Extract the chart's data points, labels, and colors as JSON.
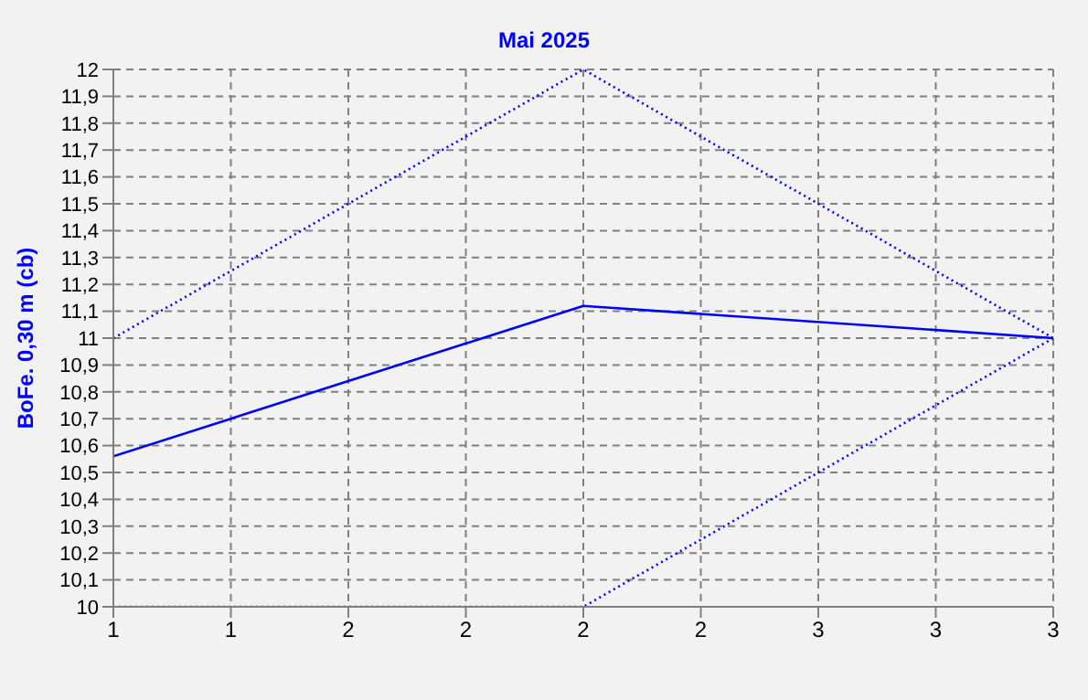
{
  "chart_data": {
    "type": "line",
    "title": "Mai 2025",
    "ylabel": "BoFe. 0,30 m (cb)",
    "x": [
      1,
      2,
      3
    ],
    "series": [
      {
        "color": "#0000ff",
        "values": [
          11.0,
          12.0,
          11.0
        ],
        "line_style": "dotted"
      },
      {
        "color": "#0000ff",
        "values": [
          10.56,
          11.12,
          11.0
        ],
        "line_style": "solid"
      },
      {
        "color": "#0000ff",
        "values": [
          10.0,
          10.0,
          11.0
        ],
        "line_style": "dotted"
      }
    ],
    "xlim": [
      1,
      3
    ],
    "xticks": [
      {
        "value": 1,
        "label": "1"
      },
      {
        "value": 1.25,
        "label": "1"
      },
      {
        "value": 1.5,
        "label": "2"
      },
      {
        "value": 1.75,
        "label": "2"
      },
      {
        "value": 2,
        "label": "2"
      },
      {
        "value": 2.25,
        "label": "2"
      },
      {
        "value": 2.5,
        "label": "3"
      },
      {
        "value": 2.75,
        "label": "3"
      },
      {
        "value": 3,
        "label": "3"
      }
    ],
    "ylim": [
      10,
      12
    ],
    "yticks": [
      {
        "value": 10,
        "label": "10"
      },
      {
        "value": 10.1,
        "label": "10,1"
      },
      {
        "value": 10.2,
        "label": "10,2"
      },
      {
        "value": 10.3,
        "label": "10,3"
      },
      {
        "value": 10.4,
        "label": "10,4"
      },
      {
        "value": 10.5,
        "label": "10,5"
      },
      {
        "value": 10.6,
        "label": "10,6"
      },
      {
        "value": 10.7,
        "label": "10,7"
      },
      {
        "value": 10.8,
        "label": "10,8"
      },
      {
        "value": 10.9,
        "label": "10,9"
      },
      {
        "value": 11,
        "label": "11"
      },
      {
        "value": 11.1,
        "label": "11,1"
      },
      {
        "value": 11.2,
        "label": "11,2"
      },
      {
        "value": 11.3,
        "label": "11,3"
      },
      {
        "value": 11.4,
        "label": "11,4"
      },
      {
        "value": 11.5,
        "label": "11,5"
      },
      {
        "value": 11.6,
        "label": "11,6"
      },
      {
        "value": 11.7,
        "label": "11,7"
      },
      {
        "value": 11.8,
        "label": "11,8"
      },
      {
        "value": 11.9,
        "label": "11,9"
      },
      {
        "value": 12,
        "label": "12"
      }
    ],
    "grid": true,
    "marker": "none",
    "legend": false
  }
}
